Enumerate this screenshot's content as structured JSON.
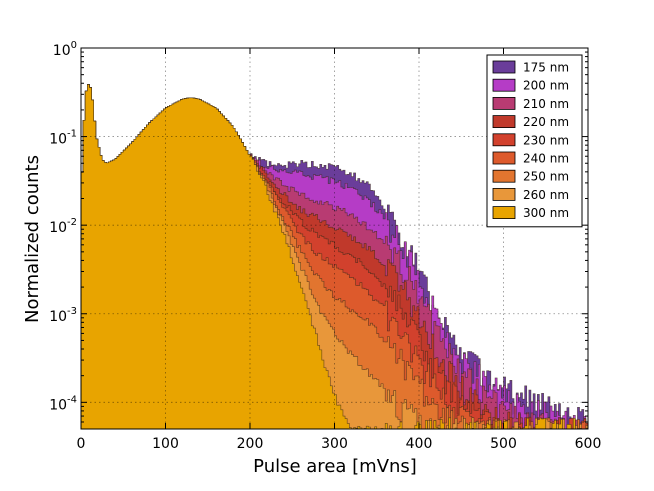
{
  "chart_data": {
    "type": "area",
    "title": "",
    "xlabel": "Pulse area [mVns]",
    "ylabel": "Normalized counts",
    "xlim": [
      0,
      600
    ],
    "ylim": [
      5e-05,
      1
    ],
    "yscale": "log",
    "grid": true,
    "legend_position": "top-right",
    "x_ticks": [
      "0",
      "100",
      "200",
      "300",
      "400",
      "500",
      "600"
    ],
    "y_ticks": [
      {
        "base": "10",
        "exp": "0"
      },
      {
        "base": "10",
        "exp": "-1"
      },
      {
        "base": "10",
        "exp": "-2"
      },
      {
        "base": "10",
        "exp": "-3"
      },
      {
        "base": "10",
        "exp": "-4"
      }
    ],
    "common_profile": {
      "x": [
        0,
        5,
        10,
        14,
        18,
        25,
        30,
        40,
        60,
        80,
        100,
        120,
        130,
        140,
        160,
        180,
        190,
        200
      ],
      "values": [
        0.02,
        0.3,
        0.42,
        0.25,
        0.1,
        0.055,
        0.05,
        0.055,
        0.085,
        0.14,
        0.21,
        0.265,
        0.275,
        0.265,
        0.21,
        0.13,
        0.09,
        0.06
      ]
    },
    "series": [
      {
        "name": "175 nm",
        "color": "#6a3d9a",
        "x": [
          200,
          220,
          240,
          260,
          280,
          300,
          320,
          340,
          360,
          380,
          400,
          420,
          440,
          460,
          480,
          500,
          540,
          580,
          600
        ],
        "values": [
          0.06,
          0.05,
          0.048,
          0.05,
          0.048,
          0.045,
          0.038,
          0.028,
          0.016,
          0.008,
          0.0032,
          0.0012,
          0.0005,
          0.0003,
          0.0002,
          0.00015,
          0.0001,
          7e-05,
          6e-05
        ]
      },
      {
        "name": "200 nm",
        "color": "#b53cc6",
        "x": [
          200,
          220,
          240,
          260,
          280,
          300,
          320,
          340,
          360,
          380,
          400,
          420,
          440,
          460,
          480,
          500,
          540,
          580,
          600
        ],
        "values": [
          0.06,
          0.046,
          0.04,
          0.038,
          0.035,
          0.031,
          0.026,
          0.019,
          0.012,
          0.0062,
          0.0026,
          0.001,
          0.00042,
          0.00025,
          0.00017,
          0.00012,
          8e-05,
          6e-05,
          5e-05
        ]
      },
      {
        "name": "210 nm",
        "color": "#b83b72",
        "x": [
          200,
          220,
          240,
          260,
          280,
          300,
          320,
          340,
          360,
          380,
          400,
          420,
          440,
          460,
          480,
          500,
          540,
          580,
          600
        ],
        "values": [
          0.06,
          0.04,
          0.028,
          0.022,
          0.019,
          0.016,
          0.013,
          0.0095,
          0.0065,
          0.0036,
          0.0016,
          0.0007,
          0.0003,
          0.00018,
          0.00012,
          8e-05,
          6e-05,
          5e-05,
          5e-05
        ]
      },
      {
        "name": "220 nm",
        "color": "#c0392b",
        "x": [
          200,
          220,
          240,
          260,
          280,
          300,
          320,
          340,
          360,
          380,
          400,
          420,
          440,
          460,
          480,
          500,
          540,
          580,
          600
        ],
        "values": [
          0.06,
          0.036,
          0.022,
          0.015,
          0.012,
          0.0095,
          0.0075,
          0.0055,
          0.0036,
          0.002,
          0.0009,
          0.0004,
          0.0002,
          0.00012,
          8e-05,
          6e-05,
          5e-05,
          5e-05,
          5e-05
        ]
      },
      {
        "name": "230 nm",
        "color": "#d2412d",
        "x": [
          200,
          220,
          240,
          260,
          280,
          300,
          320,
          340,
          360,
          380,
          400,
          420,
          440,
          460,
          480,
          500,
          540,
          580,
          600
        ],
        "values": [
          0.06,
          0.033,
          0.018,
          0.011,
          0.0078,
          0.006,
          0.0045,
          0.0032,
          0.002,
          0.0011,
          0.0005,
          0.00025,
          0.00013,
          8e-05,
          6e-05,
          5e-05,
          5e-05,
          5e-05,
          5e-05
        ]
      },
      {
        "name": "240 nm",
        "color": "#dd5a2c",
        "x": [
          200,
          220,
          240,
          260,
          280,
          300,
          320,
          340,
          360,
          380,
          400,
          420,
          440,
          460,
          480,
          500,
          540,
          580,
          600
        ],
        "values": [
          0.06,
          0.031,
          0.015,
          0.0078,
          0.0048,
          0.0034,
          0.0025,
          0.0018,
          0.0011,
          0.0006,
          0.0003,
          0.00015,
          8e-05,
          6e-05,
          5e-05,
          5e-05,
          5e-05,
          5e-05,
          5e-05
        ]
      },
      {
        "name": "250 nm",
        "color": "#e2752f",
        "x": [
          200,
          220,
          240,
          260,
          280,
          300,
          320,
          340,
          360,
          380,
          400,
          420,
          440,
          460,
          480,
          500,
          540,
          580,
          600
        ],
        "values": [
          0.06,
          0.029,
          0.012,
          0.0052,
          0.0026,
          0.0016,
          0.0011,
          0.0008,
          0.0005,
          0.0003,
          0.00016,
          9e-05,
          6e-05,
          5e-05,
          5e-05,
          5e-05,
          5e-05,
          5e-05,
          5e-05
        ]
      },
      {
        "name": "260 nm",
        "color": "#e8973a",
        "x": [
          200,
          220,
          240,
          260,
          280,
          300,
          320,
          340,
          360,
          380,
          400,
          420,
          440,
          460,
          480,
          500,
          540,
          580,
          600
        ],
        "values": [
          0.06,
          0.027,
          0.01,
          0.0035,
          0.0012,
          0.0006,
          0.00035,
          0.00022,
          0.00014,
          9e-05,
          6e-05,
          5e-05,
          5e-05,
          5e-05,
          5e-05,
          5e-05,
          5e-05,
          5e-05,
          5e-05
        ]
      },
      {
        "name": "300 nm",
        "color": "#e8a400",
        "x": [
          200,
          220,
          240,
          260,
          280,
          300,
          320,
          340,
          360,
          380,
          400,
          420,
          440,
          460,
          480,
          500,
          540,
          580,
          600
        ],
        "values": [
          0.06,
          0.025,
          0.008,
          0.0022,
          0.0005,
          0.00012,
          5e-05,
          5e-05,
          5e-05,
          5e-05,
          5e-05,
          5e-05,
          5e-05,
          5e-05,
          5e-05,
          5e-05,
          5e-05,
          5e-05,
          5e-05
        ]
      }
    ]
  }
}
